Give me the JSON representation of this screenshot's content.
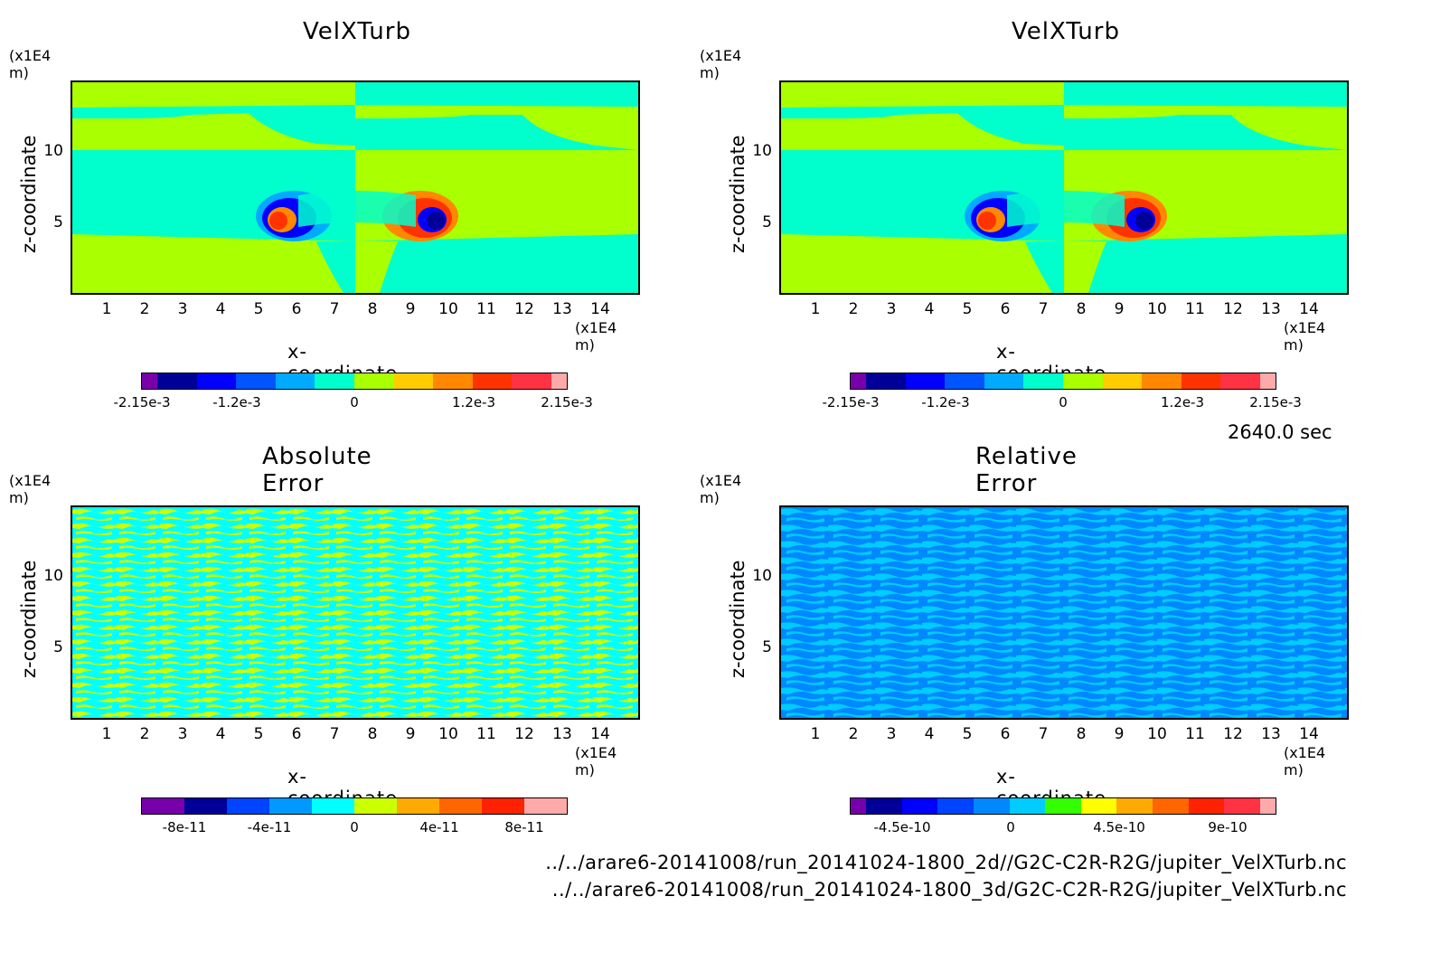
{
  "time_label": "2640.0 sec",
  "file_paths": [
    "../../arare6-20141008/run_20141024-1800_2d//G2C-C2R-R2G/jupiter_VelXTurb.nc",
    "../../arare6-20141008/run_20141024-1800_3d/G2C-C2R-R2G/jupiter_VelXTurb.nc"
  ],
  "colors": {
    "cyan": "#00ffcc",
    "green": "#aaff00",
    "abs_cyan": "#00ffff",
    "abs_yellow": "#ccff00",
    "rel_blue": "#0088ff",
    "rel_light": "#00ccff"
  },
  "chart_data": [
    {
      "type": "heatmap",
      "title": "VelXTurb",
      "y_unit": "(x1E4 m)",
      "x_unit": "(x1E4 m)",
      "xlabel": "x-coordinate",
      "ylabel": "z-coordinate",
      "xlim": [
        0,
        15
      ],
      "ylim": [
        0,
        15
      ],
      "x_ticks": [
        "1",
        "2",
        "3",
        "4",
        "5",
        "6",
        "7",
        "8",
        "9",
        "10",
        "11",
        "12",
        "13",
        "14"
      ],
      "y_ticks": [
        "5",
        "10"
      ],
      "colorbar": {
        "colors": [
          "#7700aa",
          "#000099",
          "#0000ff",
          "#0055ff",
          "#00aaff",
          "#00ffcc",
          "#aaff00",
          "#ffcc00",
          "#ff8800",
          "#ff3300",
          "#ff3344",
          "#ffaaaa"
        ],
        "labels": [
          "-2.15e-3",
          "-1.2e-3",
          "0",
          "1.2e-3",
          "2.15e-3"
        ]
      }
    },
    {
      "type": "heatmap",
      "title": "VelXTurb",
      "y_unit": "(x1E4 m)",
      "x_unit": "(x1E4 m)",
      "xlabel": "x-coordinate",
      "ylabel": "z-coordinate",
      "xlim": [
        0,
        15
      ],
      "ylim": [
        0,
        15
      ],
      "x_ticks": [
        "1",
        "2",
        "3",
        "4",
        "5",
        "6",
        "7",
        "8",
        "9",
        "10",
        "11",
        "12",
        "13",
        "14"
      ],
      "y_ticks": [
        "5",
        "10"
      ],
      "colorbar": {
        "colors": [
          "#7700aa",
          "#000099",
          "#0000ff",
          "#0055ff",
          "#00aaff",
          "#00ffcc",
          "#aaff00",
          "#ffcc00",
          "#ff8800",
          "#ff3300",
          "#ff3344",
          "#ffaaaa"
        ],
        "labels": [
          "-2.15e-3",
          "-1.2e-3",
          "0",
          "1.2e-3",
          "2.15e-3"
        ]
      }
    },
    {
      "type": "heatmap",
      "title": "Absolute Error",
      "y_unit": "(x1E4 m)",
      "x_unit": "(x1E4 m)",
      "xlabel": "x-coordinate",
      "ylabel": "z-coordinate",
      "xlim": [
        0,
        15
      ],
      "ylim": [
        0,
        15
      ],
      "x_ticks": [
        "1",
        "2",
        "3",
        "4",
        "5",
        "6",
        "7",
        "8",
        "9",
        "10",
        "11",
        "12",
        "13",
        "14"
      ],
      "y_ticks": [
        "5",
        "10"
      ],
      "colorbar": {
        "colors": [
          "#7700aa",
          "#000099",
          "#0044ff",
          "#0099ff",
          "#00ffff",
          "#ccff00",
          "#ffaa00",
          "#ff6600",
          "#ff2200",
          "#ffaaaa"
        ],
        "labels": [
          "-8e-11",
          "-4e-11",
          "0",
          "4e-11",
          "8e-11"
        ]
      }
    },
    {
      "type": "heatmap",
      "title": "Relative Error",
      "y_unit": "(x1E4 m)",
      "x_unit": "(x1E4 m)",
      "xlabel": "x-coordinate",
      "ylabel": "z-coordinate",
      "xlim": [
        0,
        15
      ],
      "ylim": [
        0,
        15
      ],
      "x_ticks": [
        "1",
        "2",
        "3",
        "4",
        "5",
        "6",
        "7",
        "8",
        "9",
        "10",
        "11",
        "12",
        "13",
        "14"
      ],
      "y_ticks": [
        "5",
        "10"
      ],
      "colorbar": {
        "colors": [
          "#7700aa",
          "#000099",
          "#0000ff",
          "#0044ff",
          "#0088ff",
          "#00ccff",
          "#33ff00",
          "#ffff00",
          "#ffaa00",
          "#ff6600",
          "#ff2200",
          "#ff3344",
          "#ffaaaa"
        ],
        "labels": [
          "-4.5e-10",
          "0",
          "4.5e-10",
          "9e-10"
        ]
      }
    }
  ]
}
